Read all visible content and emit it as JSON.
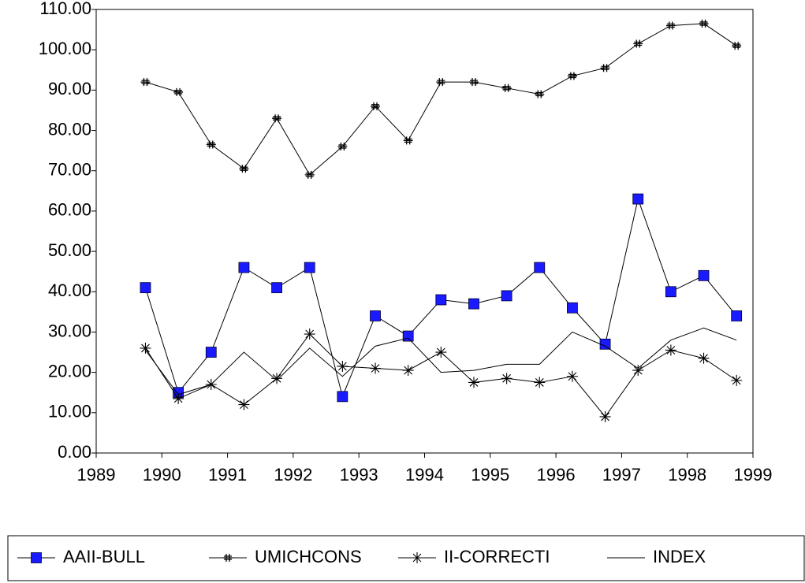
{
  "chart_data": {
    "type": "line",
    "x": [
      1989.75,
      1990.25,
      1990.75,
      1991.25,
      1991.75,
      1992.25,
      1992.75,
      1993.25,
      1993.75,
      1994.25,
      1994.75,
      1995.25,
      1995.75,
      1996.25,
      1996.75,
      1997.25,
      1997.75,
      1998.25,
      1998.75
    ],
    "series": [
      {
        "name": "AAII-BULL",
        "color": "#1a1aff",
        "marker": "square",
        "values": [
          41,
          15,
          25,
          46,
          41,
          46,
          14,
          34,
          29,
          38,
          37,
          39,
          46,
          36,
          27,
          63,
          40,
          44,
          34
        ]
      },
      {
        "name": "UMICHCONS",
        "color": "#000000",
        "marker": "hash",
        "values": [
          92,
          89.5,
          76.5,
          70.5,
          83,
          69,
          76,
          86,
          77.5,
          92,
          92,
          90.5,
          89,
          93.5,
          95.5,
          101.5,
          106,
          106.5,
          101
        ]
      },
      {
        "name": "II-CORRECTI",
        "color": "#000000",
        "marker": "star",
        "values": [
          26,
          13.5,
          17,
          12,
          18.5,
          29.5,
          21.5,
          21,
          20.5,
          25,
          17.5,
          18.5,
          17.5,
          19,
          9,
          20.5,
          25.5,
          23.5,
          18
        ]
      },
      {
        "name": "INDEX",
        "color": "#000000",
        "marker": "none",
        "values": [
          25.5,
          14.5,
          17,
          25,
          18,
          26,
          19,
          26.5,
          28.5,
          20,
          20.5,
          22,
          22,
          30,
          26.5,
          21,
          28,
          31,
          28
        ]
      }
    ],
    "xlim": [
      1989,
      1999
    ],
    "xticks": [
      1989,
      1990,
      1991,
      1992,
      1993,
      1994,
      1995,
      1996,
      1997,
      1998,
      1999
    ],
    "ylim": [
      0,
      110
    ],
    "yticks": [
      {
        "value": 0,
        "label": "0.00"
      },
      {
        "value": 10,
        "label": "10.00"
      },
      {
        "value": 20,
        "label": "20.00"
      },
      {
        "value": 30,
        "label": "30.00"
      },
      {
        "value": 40,
        "label": "40.00"
      },
      {
        "value": 50,
        "label": "50.00"
      },
      {
        "value": 60,
        "label": "60.00"
      },
      {
        "value": 70,
        "label": "70.00"
      },
      {
        "value": 80,
        "label": "80.00"
      },
      {
        "value": 90,
        "label": "90.00"
      },
      {
        "value": 100,
        "label": "100.00"
      },
      {
        "value": 110,
        "label": "110.00"
      }
    ],
    "grid": false,
    "legend": "bottom"
  }
}
